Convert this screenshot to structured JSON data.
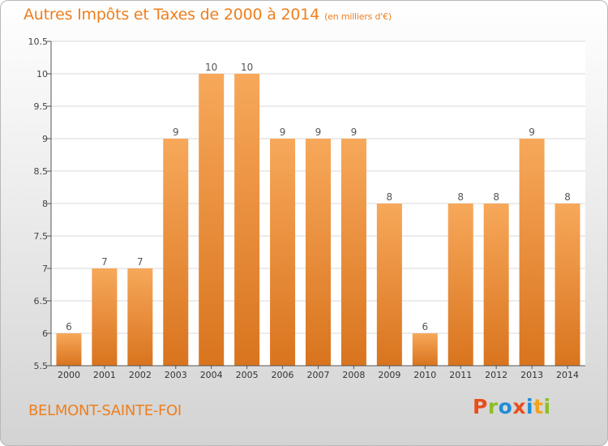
{
  "header": {
    "title": "Autres Impôts et Taxes de 2000 à 2014",
    "unit": "(en milliers d'€)"
  },
  "footer": {
    "commune": "BELMONT-SAINTE-FOI",
    "brand": "Proxiti"
  },
  "colors": {
    "title": "#ee7f1e",
    "bar_light": "#f7a85a",
    "bar_dark": "#d9741e",
    "grid": "#d9d9d9",
    "brand_letters": [
      "#e94e1b",
      "#8cbf26",
      "#1f8dd6",
      "#e94e1b",
      "#1f8dd6",
      "#f2a31b",
      "#8cbf26"
    ]
  },
  "chart_data": {
    "type": "bar",
    "title": "Autres Impôts et Taxes de 2000 à 2014",
    "subtitle": "(en milliers d'€)",
    "categories": [
      "2000",
      "2001",
      "2002",
      "2003",
      "2004",
      "2005",
      "2006",
      "2007",
      "2008",
      "2009",
      "2010",
      "2011",
      "2012",
      "2013",
      "2014"
    ],
    "values": [
      6,
      7,
      7,
      9,
      10,
      10,
      9,
      9,
      9,
      8,
      6,
      8,
      8,
      9,
      8
    ],
    "data_labels": [
      "6",
      "7",
      "7",
      "9",
      "10",
      "10",
      "9",
      "9",
      "9",
      "8",
      "6",
      "8",
      "8",
      "9",
      "8"
    ],
    "ylim": [
      5.5,
      10.5
    ],
    "yticks": [
      "5.5",
      "6",
      "6.5",
      "7",
      "7.5",
      "8",
      "8.5",
      "9",
      "9.5",
      "10",
      "10.5"
    ],
    "grid": true,
    "xlabel": "",
    "ylabel": ""
  }
}
